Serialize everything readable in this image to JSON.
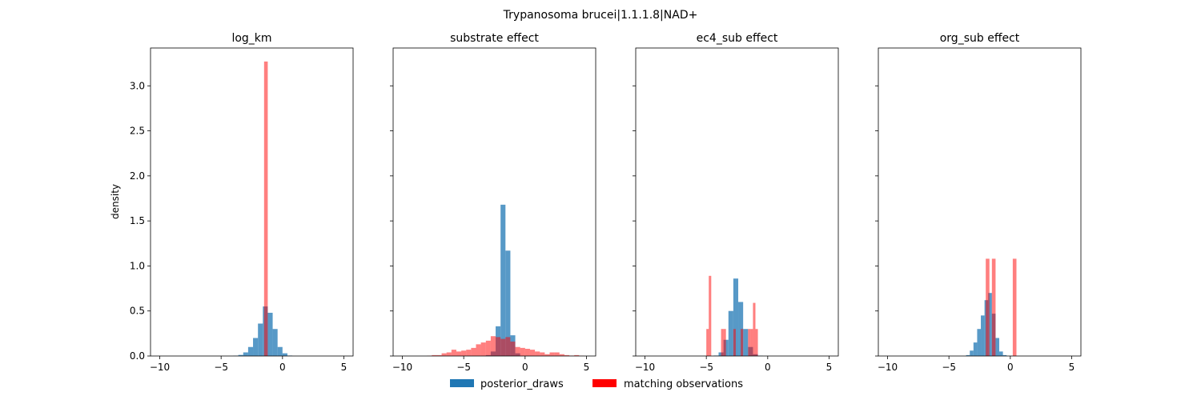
{
  "figure": {
    "title": "Trypanosoma brucei|1.1.1.8|NAD+",
    "ylabel": "density",
    "legend": {
      "placement": "bottom-center",
      "items": [
        {
          "label": "posterior_draws",
          "color": "#1f77b4"
        },
        {
          "label": "matching observations",
          "color": "#ff0000"
        }
      ]
    }
  },
  "colors": {
    "posterior": "#1f77b4",
    "observed": "#ff0000",
    "posterior_alpha": 0.75,
    "observed_alpha": 0.5
  },
  "chart_data": [
    {
      "type": "bar",
      "title": "log_km",
      "xlim": [
        -10.75,
        5.75
      ],
      "ylim": [
        0,
        3.42
      ],
      "xticks": [
        -10,
        -5,
        0,
        5
      ],
      "yticks": [
        0.0,
        0.5,
        1.0,
        1.5,
        2.0,
        2.5,
        3.0
      ],
      "series": [
        {
          "name": "posterior_draws",
          "bins": [
            [
              -4.0,
              -3.6,
              0.003
            ],
            [
              -3.6,
              -3.2,
              0.012
            ],
            [
              -3.2,
              -2.8,
              0.04
            ],
            [
              -2.8,
              -2.4,
              0.1
            ],
            [
              -2.4,
              -2.0,
              0.2
            ],
            [
              -2.0,
              -1.6,
              0.36
            ],
            [
              -1.6,
              -1.2,
              0.55
            ],
            [
              -1.2,
              -0.8,
              0.48
            ],
            [
              -0.8,
              -0.4,
              0.3
            ],
            [
              -0.4,
              0.0,
              0.1
            ],
            [
              0.0,
              0.4,
              0.03
            ],
            [
              0.4,
              0.8,
              0.005
            ]
          ]
        },
        {
          "name": "matching observations",
          "bins": [
            [
              -1.5,
              -1.2,
              3.27
            ]
          ]
        }
      ]
    },
    {
      "type": "bar",
      "title": "substrate effect",
      "xlim": [
        -10.75,
        5.75
      ],
      "ylim": [
        0,
        3.42
      ],
      "xticks": [
        -10,
        -5,
        0,
        5
      ],
      "yticks": [
        0.0,
        0.5,
        1.0,
        1.5,
        2.0,
        2.5,
        3.0
      ],
      "series": [
        {
          "name": "posterior_draws",
          "bins": [
            [
              -3.2,
              -2.8,
              0.01
            ],
            [
              -2.8,
              -2.4,
              0.05
            ],
            [
              -2.4,
              -2.0,
              0.33
            ],
            [
              -2.0,
              -1.6,
              1.68
            ],
            [
              -1.6,
              -1.2,
              1.17
            ],
            [
              -1.2,
              -0.8,
              0.23
            ],
            [
              -0.8,
              -0.4,
              0.03
            ]
          ]
        },
        {
          "name": "matching observations",
          "bins": [
            [
              -8.0,
              -7.6,
              0.003
            ],
            [
              -7.6,
              -7.2,
              0.01
            ],
            [
              -7.2,
              -6.8,
              0.01
            ],
            [
              -6.8,
              -6.4,
              0.03
            ],
            [
              -6.4,
              -6.0,
              0.04
            ],
            [
              -6.0,
              -5.6,
              0.07
            ],
            [
              -5.6,
              -5.2,
              0.05
            ],
            [
              -5.2,
              -4.8,
              0.06
            ],
            [
              -4.8,
              -4.4,
              0.07
            ],
            [
              -4.4,
              -4.0,
              0.09
            ],
            [
              -4.0,
              -3.6,
              0.13
            ],
            [
              -3.6,
              -3.2,
              0.15
            ],
            [
              -3.2,
              -2.8,
              0.17
            ],
            [
              -2.8,
              -2.4,
              0.22
            ],
            [
              -2.4,
              -2.0,
              0.21
            ],
            [
              -2.0,
              -1.6,
              0.19
            ],
            [
              -1.6,
              -1.2,
              0.21
            ],
            [
              -1.2,
              -0.8,
              0.16
            ],
            [
              -0.8,
              -0.4,
              0.1
            ],
            [
              -0.4,
              0.0,
              0.09
            ],
            [
              0.0,
              0.4,
              0.08
            ],
            [
              0.4,
              0.8,
              0.07
            ],
            [
              0.8,
              1.2,
              0.05
            ],
            [
              1.2,
              1.6,
              0.04
            ],
            [
              1.6,
              2.0,
              0.02
            ],
            [
              2.0,
              2.4,
              0.04
            ],
            [
              2.4,
              2.8,
              0.04
            ],
            [
              2.8,
              3.2,
              0.02
            ],
            [
              3.2,
              3.6,
              0.01
            ],
            [
              3.6,
              4.0,
              0.005
            ],
            [
              4.0,
              4.4,
              0.01
            ],
            [
              4.4,
              4.8,
              0.003
            ]
          ]
        }
      ]
    },
    {
      "type": "bar",
      "title": "ec4_sub effect",
      "xlim": [
        -10.75,
        5.75
      ],
      "ylim": [
        0,
        3.42
      ],
      "xticks": [
        -10,
        -5,
        0,
        5
      ],
      "yticks": [
        0.0,
        0.5,
        1.0,
        1.5,
        2.0,
        2.5,
        3.0
      ],
      "series": [
        {
          "name": "posterior_draws",
          "bins": [
            [
              -4.4,
              -4.0,
              0.005
            ],
            [
              -4.0,
              -3.6,
              0.04
            ],
            [
              -3.6,
              -3.2,
              0.18
            ],
            [
              -3.2,
              -2.8,
              0.5
            ],
            [
              -2.8,
              -2.4,
              0.86
            ],
            [
              -2.4,
              -2.0,
              0.6
            ],
            [
              -2.0,
              -1.6,
              0.3
            ],
            [
              -1.6,
              -1.2,
              0.1
            ],
            [
              -1.2,
              -0.8,
              0.02
            ],
            [
              -0.8,
              -0.4,
              0.003
            ]
          ]
        },
        {
          "name": "matching observations",
          "bins": [
            [
              -5.0,
              -4.8,
              0.3
            ],
            [
              -4.8,
              -4.6,
              0.89
            ],
            [
              -3.8,
              -3.6,
              0.3
            ],
            [
              -3.6,
              -3.4,
              0.3
            ],
            [
              -2.8,
              -2.6,
              0.3
            ],
            [
              -2.2,
              -2.0,
              0.3
            ],
            [
              -1.6,
              -1.4,
              0.3
            ],
            [
              -1.4,
              -1.2,
              0.3
            ],
            [
              -1.2,
              -1.0,
              0.59
            ],
            [
              -1.0,
              -0.8,
              0.3
            ]
          ]
        }
      ]
    },
    {
      "type": "bar",
      "title": "org_sub effect",
      "xlim": [
        -10.75,
        5.75
      ],
      "ylim": [
        0,
        3.42
      ],
      "xticks": [
        -10,
        -5,
        0,
        5
      ],
      "yticks": [
        0.0,
        0.5,
        1.0,
        1.5,
        2.0,
        2.5,
        3.0
      ],
      "series": [
        {
          "name": "posterior_draws",
          "bins": [
            [
              -3.6,
              -3.3,
              0.01
            ],
            [
              -3.3,
              -3.0,
              0.06
            ],
            [
              -3.0,
              -2.7,
              0.15
            ],
            [
              -2.7,
              -2.4,
              0.3
            ],
            [
              -2.4,
              -2.1,
              0.45
            ],
            [
              -2.1,
              -1.8,
              0.62
            ],
            [
              -1.8,
              -1.5,
              0.7
            ],
            [
              -1.5,
              -1.2,
              0.47
            ],
            [
              -1.2,
              -0.9,
              0.2
            ],
            [
              -0.9,
              -0.6,
              0.05
            ],
            [
              -0.6,
              -0.3,
              0.01
            ]
          ]
        },
        {
          "name": "matching observations",
          "bins": [
            [
              -2.0,
              -1.7,
              1.08
            ],
            [
              -1.5,
              -1.2,
              1.08
            ],
            [
              0.2,
              0.5,
              1.08
            ]
          ]
        }
      ]
    }
  ]
}
